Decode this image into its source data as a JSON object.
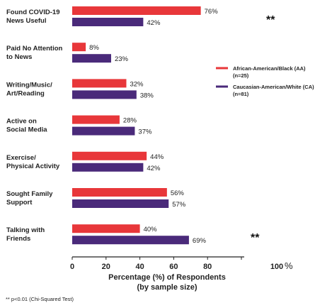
{
  "chart_data": {
    "type": "bar",
    "orientation": "horizontal",
    "categories": [
      [
        "Found COVID-19",
        "News Useful"
      ],
      [
        "Paid No Attention",
        "to News"
      ],
      [
        "Writing/Music/",
        "Art/Reading"
      ],
      [
        "Active on",
        "Social Media"
      ],
      [
        "Exercise/",
        "Physical Activity"
      ],
      [
        "Sought Family",
        "Support"
      ],
      [
        "Talking with",
        "Friends"
      ]
    ],
    "series": [
      {
        "name": [
          "African-American/Black (AA)",
          "(n=25)"
        ],
        "color": "#e8373a",
        "values": [
          76,
          8,
          32,
          28,
          44,
          56,
          40
        ],
        "labels": [
          "76%",
          "8%",
          "32%",
          "28%",
          "44%",
          "56%",
          "40%"
        ]
      },
      {
        "name": [
          "Caucasian-American/White (CA)",
          "(n=81)"
        ],
        "color": "#4a2a7a",
        "values": [
          42,
          23,
          38,
          37,
          42,
          57,
          69
        ],
        "labels": [
          "42%",
          "23%",
          "38%",
          "37%",
          "42%",
          "57%",
          "69%"
        ]
      }
    ],
    "xlim": [
      0,
      100
    ],
    "xticks": [
      "0",
      "20",
      "40",
      "60",
      "80",
      "100"
    ],
    "xtick_suffix": "%",
    "xlabel": [
      "Percentage (%) of Respondents",
      "(by sample size)"
    ],
    "ylabel": "",
    "legend_position": "right",
    "significance": [
      {
        "category_index": 0,
        "marker": "**"
      },
      {
        "category_index": 6,
        "marker": "**"
      }
    ],
    "footnote": "** p<0.01 (Chi-Squared Test)"
  }
}
